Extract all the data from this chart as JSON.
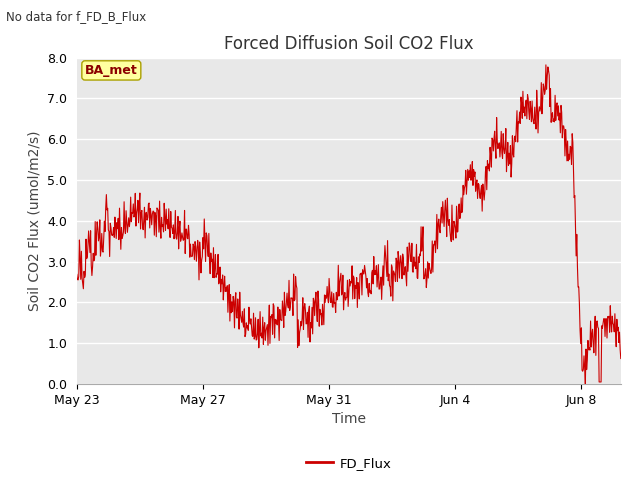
{
  "title": "Forced Diffusion Soil CO2 Flux",
  "xlabel": "Time",
  "ylabel": "Soil CO2 Flux (umol/m2/s)",
  "no_data_text": "No data for f_FD_B_Flux",
  "ba_met_label": "BA_met",
  "legend_label": "FD_Flux",
  "line_color": "#cc0000",
  "ylim": [
    0.0,
    8.0
  ],
  "yticks": [
    0.0,
    1.0,
    2.0,
    3.0,
    4.0,
    5.0,
    6.0,
    7.0,
    8.0
  ],
  "plot_bg_color": "#e8e8e8",
  "fig_bg_color": "#ffffff",
  "title_fontsize": 12,
  "axis_label_fontsize": 10,
  "tick_fontsize": 9,
  "grid_color": "#ffffff",
  "grid_linewidth": 1.0
}
